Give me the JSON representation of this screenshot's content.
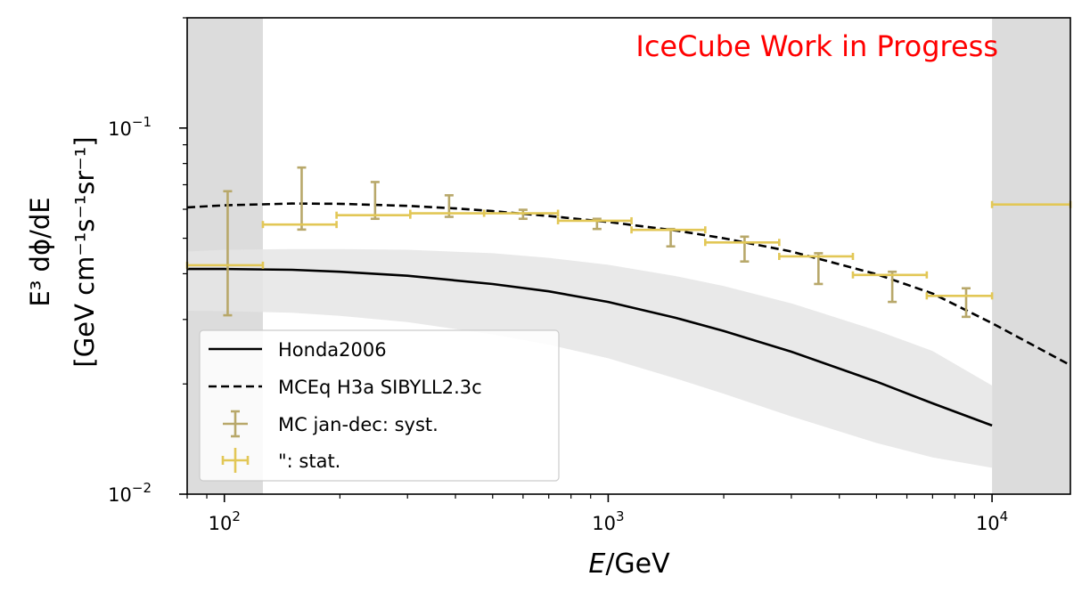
{
  "chart_data": {
    "type": "line",
    "title": "",
    "watermark": "IceCube Work in Progress",
    "watermark_color": "#ff0000",
    "xlabel_parts": [
      "E",
      "/GeV"
    ],
    "ylabel_line1": "E³ dϕ/dE",
    "ylabel_line2": "[GeV cm⁻¹s⁻¹sr⁻¹]",
    "x_scale": "log",
    "y_scale": "log",
    "xlim": [
      80,
      16000
    ],
    "ylim": [
      0.01,
      0.2
    ],
    "x_ticks": [
      {
        "value": 100,
        "base": "10",
        "exp": "2"
      },
      {
        "value": 1000,
        "base": "10",
        "exp": "3"
      },
      {
        "value": 10000,
        "base": "10",
        "exp": "4"
      }
    ],
    "y_ticks": [
      {
        "value": 0.01,
        "base": "10",
        "exp": "−2"
      },
      {
        "value": 0.1,
        "base": "10",
        "exp": "−1"
      }
    ],
    "grid": false,
    "legend_position": "lower-left",
    "shaded_regions": [
      {
        "x0": 80,
        "x1": 126,
        "color": "#dcdcdc"
      },
      {
        "x0": 10000,
        "x1": 16000,
        "color": "#dcdcdc"
      }
    ],
    "series": [
      {
        "name": "Honda2006",
        "style": "solid",
        "color": "#000000",
        "x": [
          80,
          100,
          150,
          200,
          300,
          500,
          700,
          1000,
          1500,
          2000,
          3000,
          5000,
          7000,
          10000
        ],
        "y": [
          0.0412,
          0.0412,
          0.041,
          0.0405,
          0.0395,
          0.0375,
          0.0358,
          0.0335,
          0.0303,
          0.0279,
          0.0245,
          0.0203,
          0.0177,
          0.0154
        ],
        "band_low": [
          0.0317,
          0.0316,
          0.0313,
          0.0307,
          0.0295,
          0.0273,
          0.0256,
          0.0235,
          0.0207,
          0.0188,
          0.0163,
          0.0138,
          0.0126,
          0.0118
        ],
        "band_high": [
          0.046,
          0.0465,
          0.0467,
          0.0467,
          0.0465,
          0.0455,
          0.0442,
          0.0423,
          0.0394,
          0.037,
          0.0332,
          0.028,
          0.0246,
          0.0198
        ],
        "band_color": "#e5e5e5"
      },
      {
        "name": "MCEq H3a SIBYLL2.3c",
        "style": "dashed",
        "color": "#000000",
        "x": [
          80,
          100,
          150,
          200,
          300,
          400,
          500,
          700,
          1000,
          1500,
          2000,
          3000,
          5000,
          7000,
          10000,
          16000
        ],
        "y": [
          0.0607,
          0.0615,
          0.0622,
          0.0621,
          0.0613,
          0.0603,
          0.0593,
          0.0575,
          0.0554,
          0.0525,
          0.05,
          0.046,
          0.0399,
          0.0353,
          0.0293,
          0.0225
        ]
      },
      {
        "name": "MC jan-dec: syst.",
        "type": "errorbar",
        "color": "#b8a86a",
        "points": [
          {
            "x": 102,
            "y": 0.0422,
            "ylo": 0.0308,
            "yhi": 0.0672
          },
          {
            "x": 159,
            "y": 0.0545,
            "ylo": 0.0528,
            "yhi": 0.078
          },
          {
            "x": 247,
            "y": 0.0578,
            "ylo": 0.0565,
            "yhi": 0.0712
          },
          {
            "x": 385,
            "y": 0.0585,
            "ylo": 0.0572,
            "yhi": 0.0655
          },
          {
            "x": 600,
            "y": 0.0585,
            "ylo": 0.0565,
            "yhi": 0.0598
          },
          {
            "x": 935,
            "y": 0.0558,
            "ylo": 0.053,
            "yhi": 0.0565
          },
          {
            "x": 1455,
            "y": 0.0527,
            "ylo": 0.0475,
            "yhi": 0.053
          },
          {
            "x": 2266,
            "y": 0.0487,
            "ylo": 0.0432,
            "yhi": 0.0505
          },
          {
            "x": 3530,
            "y": 0.0446,
            "ylo": 0.0375,
            "yhi": 0.0455
          },
          {
            "x": 5496,
            "y": 0.0397,
            "ylo": 0.0335,
            "yhi": 0.0405
          },
          {
            "x": 8560,
            "y": 0.0348,
            "ylo": 0.0305,
            "yhi": 0.0365
          }
        ]
      },
      {
        "name": "\": stat.",
        "type": "errorbar",
        "color": "#e2c756",
        "points": [
          {
            "x": 102,
            "y": 0.0422,
            "xlo": 80,
            "xhi": 126
          },
          {
            "x": 159,
            "y": 0.0545,
            "xlo": 126,
            "xhi": 196
          },
          {
            "x": 247,
            "y": 0.0578,
            "xlo": 196,
            "xhi": 305
          },
          {
            "x": 385,
            "y": 0.0585,
            "xlo": 305,
            "xhi": 475
          },
          {
            "x": 600,
            "y": 0.0585,
            "xlo": 475,
            "xhi": 740
          },
          {
            "x": 935,
            "y": 0.0558,
            "xlo": 740,
            "xhi": 1150
          },
          {
            "x": 1455,
            "y": 0.0527,
            "xlo": 1150,
            "xhi": 1790
          },
          {
            "x": 2266,
            "y": 0.0487,
            "xlo": 1790,
            "xhi": 2790
          },
          {
            "x": 3530,
            "y": 0.0446,
            "xlo": 2790,
            "xhi": 4340
          },
          {
            "x": 5496,
            "y": 0.0397,
            "xlo": 4340,
            "xhi": 6760
          },
          {
            "x": 8560,
            "y": 0.0348,
            "xlo": 6760,
            "xhi": 10000
          },
          {
            "x": 13000,
            "y": 0.0618,
            "xlo": 10000,
            "xhi": 16000
          }
        ]
      }
    ]
  }
}
